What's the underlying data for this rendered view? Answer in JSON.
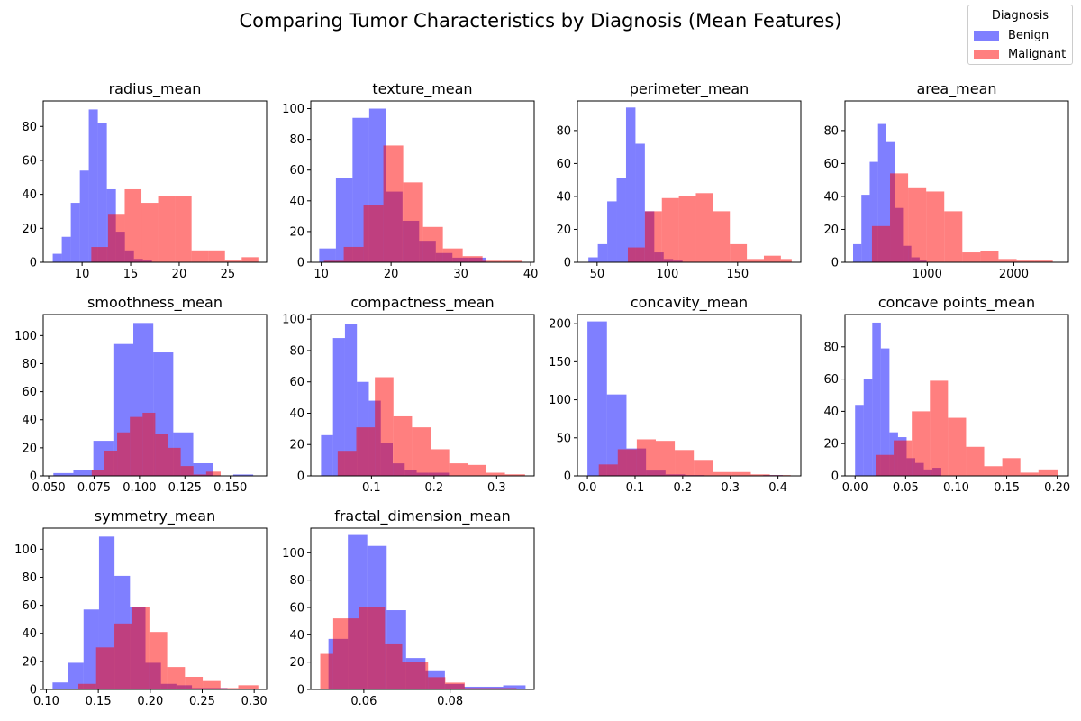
{
  "title": "Comparing Tumor Characteristics by Diagnosis (Mean Features)",
  "legend": {
    "title": "Diagnosis",
    "entries": [
      {
        "label": "Benign",
        "color": "#0000ff"
      },
      {
        "label": "Malignant",
        "color": "#ff0000"
      }
    ]
  },
  "chart_data": [
    {
      "type": "histogram",
      "title": "radius_mean",
      "xlim": [
        6.0,
        29.0
      ],
      "ylim": [
        0,
        95
      ],
      "xticks": [
        10,
        15,
        20,
        25
      ],
      "xtick_labels": [
        "10",
        "15",
        "20",
        "25"
      ],
      "yticks": [
        0,
        20,
        40,
        60,
        80
      ],
      "ytick_labels": [
        "0",
        "20",
        "40",
        "60",
        "80"
      ],
      "series": [
        {
          "name": "Benign",
          "color": "#0000ff",
          "edges": [
            6.98,
            7.91,
            8.84,
            9.77,
            10.69,
            11.62,
            12.55,
            13.48,
            14.41,
            15.34,
            16.26,
            17.19
          ],
          "counts": [
            5,
            15,
            35,
            54,
            90,
            82,
            43,
            18,
            7,
            2,
            1
          ]
        },
        {
          "name": "Malignant",
          "color": "#ff0000",
          "edges": [
            10.95,
            12.67,
            14.39,
            16.11,
            17.83,
            19.55,
            21.27,
            22.99,
            24.71,
            26.43,
            28.15
          ],
          "counts": [
            9,
            28,
            43,
            35,
            39,
            39,
            7,
            7,
            1,
            3
          ]
        }
      ]
    },
    {
      "type": "histogram",
      "title": "texture_mean",
      "xlim": [
        8.5,
        40.5
      ],
      "ylim": [
        0,
        105
      ],
      "xticks": [
        10,
        20,
        30,
        40
      ],
      "xtick_labels": [
        "10",
        "20",
        "30",
        "40"
      ],
      "yticks": [
        0,
        20,
        40,
        60,
        80,
        100
      ],
      "ytick_labels": [
        "0",
        "20",
        "40",
        "60",
        "80",
        "100"
      ],
      "series": [
        {
          "name": "Benign",
          "color": "#0000ff",
          "edges": [
            9.71,
            12.1,
            14.48,
            16.87,
            19.25,
            21.64,
            24.02,
            26.41,
            28.79,
            31.18,
            33.56
          ],
          "counts": [
            9,
            55,
            94,
            100,
            46,
            27,
            14,
            6,
            3,
            3
          ]
        },
        {
          "name": "Malignant",
          "color": "#ff0000",
          "edges": [
            10.38,
            13.22,
            16.06,
            18.9,
            21.74,
            24.58,
            27.42,
            30.26,
            33.1,
            35.94,
            38.78
          ],
          "counts": [
            1,
            10,
            37,
            76,
            52,
            23,
            9,
            4,
            1,
            1
          ]
        }
      ]
    },
    {
      "type": "histogram",
      "title": "perimeter_mean",
      "xlim": [
        36.0,
        195.0
      ],
      "ylim": [
        0,
        98
      ],
      "xticks": [
        50,
        100,
        150
      ],
      "xtick_labels": [
        "50",
        "100",
        "150"
      ],
      "yticks": [
        0,
        20,
        40,
        60,
        80
      ],
      "ytick_labels": [
        "0",
        "20",
        "40",
        "60",
        "80"
      ],
      "series": [
        {
          "name": "Benign",
          "color": "#0000ff",
          "edges": [
            43.8,
            50.5,
            57.2,
            63.9,
            70.6,
            77.3,
            84.0,
            90.7,
            97.4,
            104.1,
            110.8,
            114.6
          ],
          "counts": [
            3,
            11,
            37,
            51,
            94,
            72,
            31,
            6,
            2,
            1,
            0
          ]
        },
        {
          "name": "Malignant",
          "color": "#ff0000",
          "edges": [
            71.9,
            84.0,
            96.1,
            108.2,
            120.3,
            132.4,
            144.5,
            156.6,
            168.7,
            180.8,
            188.5
          ],
          "counts": [
            9,
            31,
            39,
            40,
            42,
            31,
            11,
            2,
            4,
            2
          ]
        }
      ]
    },
    {
      "type": "histogram",
      "title": "area_mean",
      "xlim": [
        50.0,
        2630.0
      ],
      "ylim": [
        0,
        98
      ],
      "xticks": [
        1000,
        2000
      ],
      "xtick_labels": [
        "1000",
        "2000"
      ],
      "yticks": [
        0,
        20,
        40,
        60,
        80
      ],
      "ytick_labels": [
        "0",
        "20",
        "40",
        "60",
        "80"
      ],
      "series": [
        {
          "name": "Benign",
          "color": "#0000ff",
          "edges": [
            143.5,
            239.6,
            335.7,
            431.8,
            527.9,
            624.0,
            720.1,
            816.2,
            912.3,
            992.1
          ],
          "counts": [
            11,
            41,
            61,
            84,
            73,
            33,
            10,
            3,
            1
          ]
        },
        {
          "name": "Malignant",
          "color": "#ff0000",
          "edges": [
            361.6,
            570.4,
            779.2,
            988.0,
            1196.8,
            1405.6,
            1614.4,
            1823.2,
            2032.0,
            2240.8,
            2449.6
          ],
          "counts": [
            22,
            54,
            45,
            43,
            31,
            6,
            7,
            2,
            1,
            1
          ]
        }
      ]
    },
    {
      "type": "histogram",
      "title": "smoothness_mean",
      "xlim": [
        0.047,
        0.17
      ],
      "ylim": [
        0,
        115
      ],
      "xticks": [
        0.05,
        0.075,
        0.1,
        0.125,
        0.15
      ],
      "xtick_labels": [
        "0.050",
        "0.075",
        "0.100",
        "0.125",
        "0.150"
      ],
      "yticks": [
        0,
        20,
        40,
        60,
        80,
        100
      ],
      "ytick_labels": [
        "0",
        "20",
        "40",
        "60",
        "80",
        "100"
      ],
      "series": [
        {
          "name": "Benign",
          "color": "#0000ff",
          "edges": [
            0.0526,
            0.0636,
            0.0746,
            0.0856,
            0.0966,
            0.1076,
            0.1186,
            0.1296,
            0.1406,
            0.1516,
            0.1626
          ],
          "counts": [
            2,
            4,
            25,
            94,
            109,
            88,
            31,
            9,
            0,
            1
          ]
        },
        {
          "name": "Malignant",
          "color": "#ff0000",
          "edges": [
            0.0737,
            0.0807,
            0.0877,
            0.0947,
            0.1017,
            0.1087,
            0.1157,
            0.1227,
            0.1297,
            0.1367,
            0.1447
          ],
          "counts": [
            4,
            18,
            31,
            42,
            45,
            30,
            20,
            7,
            1,
            3
          ]
        }
      ]
    },
    {
      "type": "histogram",
      "title": "compactness_mean",
      "xlim": [
        0.003,
        0.36
      ],
      "ylim": [
        0,
        103
      ],
      "xticks": [
        0.1,
        0.2,
        0.3
      ],
      "xtick_labels": [
        "0.1",
        "0.2",
        "0.3"
      ],
      "yticks": [
        0,
        20,
        40,
        60,
        80,
        100
      ],
      "ytick_labels": [
        "0",
        "20",
        "40",
        "60",
        "80",
        "100"
      ],
      "series": [
        {
          "name": "Benign",
          "color": "#0000ff",
          "edges": [
            0.0194,
            0.0385,
            0.0576,
            0.0767,
            0.0958,
            0.1149,
            0.134,
            0.1531,
            0.1722,
            0.1913,
            0.2239
          ],
          "counts": [
            26,
            88,
            97,
            60,
            48,
            21,
            8,
            4,
            2,
            2
          ]
        },
        {
          "name": "Malignant",
          "color": "#ff0000",
          "edges": [
            0.046,
            0.0757,
            0.1054,
            0.1351,
            0.1648,
            0.1945,
            0.2242,
            0.2539,
            0.2836,
            0.3133,
            0.3454
          ],
          "counts": [
            16,
            31,
            63,
            38,
            31,
            17,
            8,
            7,
            2,
            1
          ]
        }
      ]
    },
    {
      "type": "histogram",
      "title": "concavity_mean",
      "xlim": [
        -0.021,
        0.448
      ],
      "ylim": [
        0,
        212
      ],
      "xticks": [
        0.0,
        0.1,
        0.2,
        0.3,
        0.4
      ],
      "xtick_labels": [
        "0.0",
        "0.1",
        "0.2",
        "0.3",
        "0.4"
      ],
      "yticks": [
        0,
        50,
        100,
        150,
        200
      ],
      "ytick_labels": [
        "0",
        "50",
        "100",
        "150",
        "200"
      ],
      "series": [
        {
          "name": "Benign",
          "color": "#0000ff",
          "edges": [
            0.0,
            0.041,
            0.082,
            0.123,
            0.164,
            0.205,
            0.246,
            0.287,
            0.328,
            0.369,
            0.41
          ],
          "counts": [
            203,
            107,
            36,
            7,
            2,
            1,
            0,
            0,
            0,
            1
          ]
        },
        {
          "name": "Malignant",
          "color": "#ff0000",
          "edges": [
            0.0238,
            0.0637,
            0.1036,
            0.1435,
            0.1834,
            0.2233,
            0.2632,
            0.3031,
            0.343,
            0.3829,
            0.4268
          ],
          "counts": [
            15,
            35,
            48,
            46,
            34,
            21,
            5,
            5,
            2,
            1
          ]
        }
      ]
    },
    {
      "type": "histogram",
      "title": "concave points_mean",
      "xlim": [
        -0.01,
        0.211
      ],
      "ylim": [
        0,
        100
      ],
      "xticks": [
        0.0,
        0.05,
        0.1,
        0.15,
        0.2
      ],
      "xtick_labels": [
        "0.00",
        "0.05",
        "0.10",
        "0.15",
        "0.20"
      ],
      "yticks": [
        0,
        20,
        40,
        60,
        80
      ],
      "ytick_labels": [
        "0",
        "20",
        "40",
        "60",
        "80"
      ],
      "series": [
        {
          "name": "Benign",
          "color": "#0000ff",
          "edges": [
            0.0,
            0.0085,
            0.017,
            0.0255,
            0.034,
            0.0425,
            0.051,
            0.0595,
            0.068,
            0.0765,
            0.0853
          ],
          "counts": [
            44,
            60,
            95,
            79,
            27,
            24,
            11,
            8,
            4,
            5
          ]
        },
        {
          "name": "Malignant",
          "color": "#ff0000",
          "edges": [
            0.0203,
            0.0382,
            0.0561,
            0.074,
            0.0919,
            0.1098,
            0.1277,
            0.1456,
            0.1635,
            0.1814,
            0.2012
          ],
          "counts": [
            13,
            22,
            40,
            59,
            36,
            18,
            6,
            11,
            2,
            4
          ]
        }
      ]
    },
    {
      "type": "histogram",
      "title": "symmetry_mean",
      "xlim": [
        0.097,
        0.312
      ],
      "ylim": [
        0,
        115
      ],
      "xticks": [
        0.1,
        0.15,
        0.2,
        0.25,
        0.3
      ],
      "xtick_labels": [
        "0.10",
        "0.15",
        "0.20",
        "0.25",
        "0.30"
      ],
      "yticks": [
        0,
        20,
        40,
        60,
        80,
        100
      ],
      "ytick_labels": [
        "0",
        "20",
        "40",
        "60",
        "80",
        "100"
      ],
      "series": [
        {
          "name": "Benign",
          "color": "#0000ff",
          "edges": [
            0.106,
            0.1209,
            0.1358,
            0.1507,
            0.1656,
            0.1805,
            0.1954,
            0.2103,
            0.2252,
            0.2401,
            0.2743
          ],
          "counts": [
            5,
            19,
            57,
            109,
            81,
            59,
            19,
            4,
            3,
            1
          ]
        },
        {
          "name": "Malignant",
          "color": "#ff0000",
          "edges": [
            0.1308,
            0.1479,
            0.165,
            0.1821,
            0.1992,
            0.2163,
            0.2334,
            0.2505,
            0.2676,
            0.2847,
            0.304
          ],
          "counts": [
            4,
            30,
            47,
            59,
            41,
            16,
            9,
            6,
            1,
            3
          ]
        }
      ]
    },
    {
      "type": "histogram",
      "title": "fractal_dimension_mean",
      "xlim": [
        0.0477,
        0.0995
      ],
      "ylim": [
        0,
        118
      ],
      "xticks": [
        0.06,
        0.08
      ],
      "xtick_labels": [
        "0.06",
        "0.08"
      ],
      "yticks": [
        0,
        20,
        40,
        60,
        80,
        100
      ],
      "ytick_labels": [
        "0",
        "20",
        "40",
        "60",
        "80",
        "100"
      ],
      "series": [
        {
          "name": "Benign",
          "color": "#0000ff",
          "edges": [
            0.0518,
            0.0563,
            0.0608,
            0.0653,
            0.0698,
            0.0743,
            0.0788,
            0.0833,
            0.0878,
            0.0923,
            0.0975
          ],
          "counts": [
            37,
            113,
            105,
            58,
            23,
            14,
            4,
            2,
            2,
            3
          ]
        },
        {
          "name": "Malignant",
          "color": "#ff0000",
          "edges": [
            0.0499,
            0.0529,
            0.0589,
            0.0649,
            0.0689,
            0.0749,
            0.0789,
            0.0834,
            0.0874,
            0.0914,
            0.0954
          ],
          "counts": [
            26,
            52,
            60,
            33,
            20,
            9,
            5,
            1,
            1,
            1
          ]
        }
      ]
    }
  ]
}
